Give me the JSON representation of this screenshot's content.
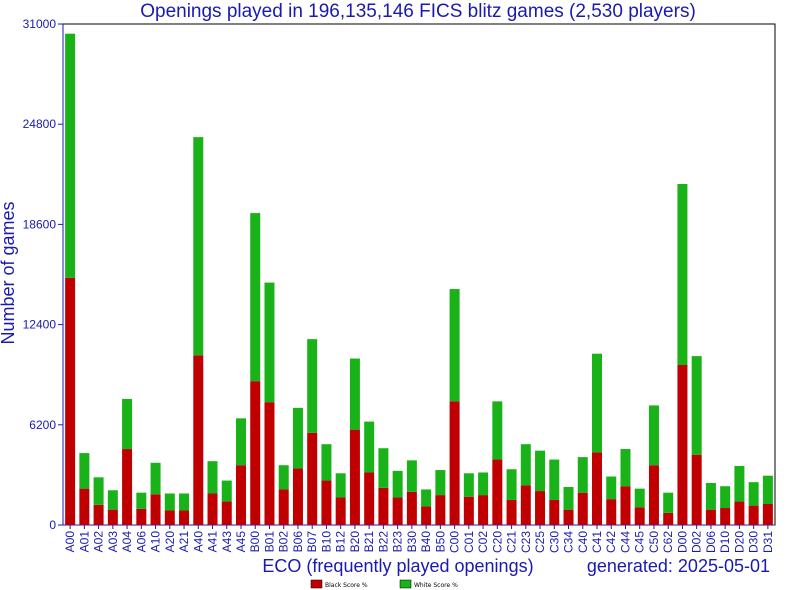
{
  "chart_data": {
    "type": "bar",
    "stacked": true,
    "title": "Openings played in 196,135,146 FICS blitz games (2,530 players)",
    "xlabel": "ECO (frequently played openings)",
    "ylabel": "Number of games",
    "footer": "generated: 2025-05-01",
    "ylim": [
      0,
      31000
    ],
    "yticks": [
      "0",
      "6200",
      "12400",
      "18600",
      "24800",
      "31000"
    ],
    "legend_position": "bottom-center",
    "colors": {
      "black": "#c00000",
      "white": "#19b319",
      "axis": "#1a1ab0",
      "frame": "#000000"
    },
    "categories": [
      "A00",
      "A01",
      "A02",
      "A03",
      "A04",
      "A06",
      "A10",
      "A20",
      "A21",
      "A40",
      "A41",
      "A43",
      "A45",
      "B00",
      "B01",
      "B02",
      "B06",
      "B07",
      "B10",
      "B12",
      "B20",
      "B21",
      "B22",
      "B23",
      "B30",
      "B40",
      "B50",
      "C00",
      "C01",
      "C02",
      "C20",
      "C21",
      "C23",
      "C25",
      "C30",
      "C34",
      "C40",
      "C41",
      "C42",
      "C44",
      "C45",
      "C50",
      "C62",
      "D00",
      "D02",
      "D06",
      "D10",
      "D20",
      "D30",
      "D31"
    ],
    "series": [
      {
        "name": "Black Score %",
        "values": [
          15300,
          2250,
          1250,
          950,
          4700,
          1000,
          1900,
          900,
          900,
          10500,
          1950,
          1450,
          3700,
          8900,
          7600,
          2200,
          3500,
          5700,
          2750,
          1700,
          5900,
          3250,
          2300,
          1700,
          2050,
          1150,
          1850,
          7650,
          1750,
          1850,
          4050,
          1550,
          2450,
          2100,
          1550,
          950,
          2000,
          4500,
          1600,
          2400,
          1100,
          3700,
          750,
          9900,
          4350,
          950,
          1050,
          1450,
          1200,
          1300
        ]
      },
      {
        "name": "White Score %",
        "values": [
          15100,
          2200,
          1700,
          1200,
          3100,
          1000,
          1950,
          1050,
          1050,
          13500,
          2000,
          1300,
          2900,
          10400,
          7400,
          1500,
          3750,
          5800,
          2250,
          1500,
          4400,
          3150,
          2450,
          1650,
          1950,
          1050,
          1550,
          6950,
          1450,
          1400,
          3600,
          1900,
          2550,
          2500,
          2500,
          1400,
          2200,
          6100,
          1400,
          2300,
          1150,
          3700,
          1250,
          11200,
          6100,
          1650,
          1350,
          2200,
          1450,
          1750
        ]
      }
    ]
  }
}
